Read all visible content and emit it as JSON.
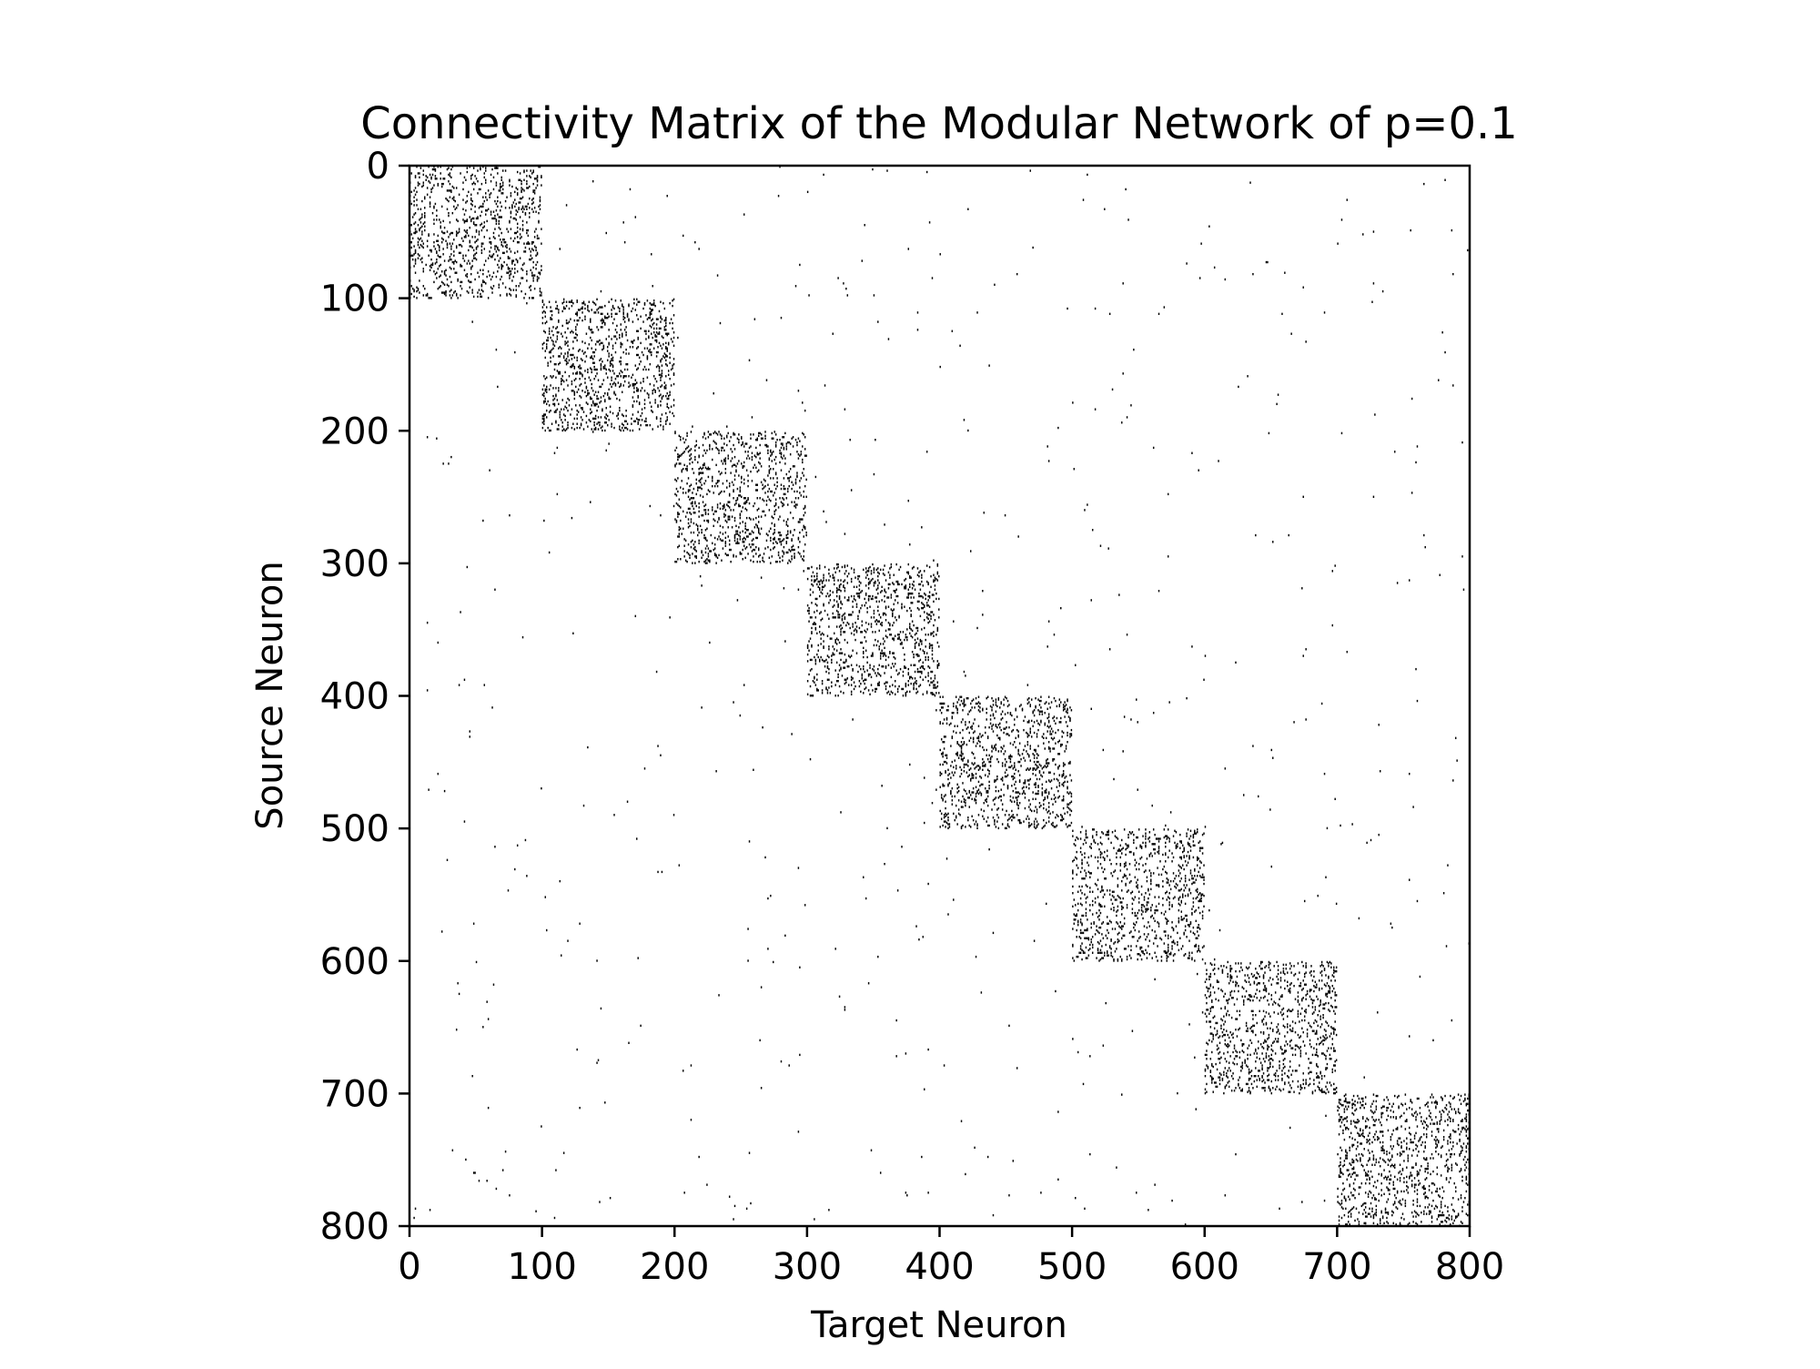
{
  "chart_data": {
    "type": "heatmap",
    "title": "Connectivity Matrix of the Modular Network of p=0.1",
    "xlabel": "Target Neuron",
    "ylabel": "Source Neuron",
    "xlim": [
      0,
      800
    ],
    "ylim": [
      800,
      0
    ],
    "x_ticks": [
      0,
      100,
      200,
      300,
      400,
      500,
      600,
      700,
      800
    ],
    "y_ticks": [
      0,
      100,
      200,
      300,
      400,
      500,
      600,
      700,
      800
    ],
    "x_tick_labels": [
      "0",
      "100",
      "200",
      "300",
      "400",
      "500",
      "600",
      "700",
      "800"
    ],
    "y_tick_labels": [
      "0",
      "100",
      "200",
      "300",
      "400",
      "500",
      "600",
      "700",
      "800"
    ],
    "grid": false,
    "colormap": "binary",
    "matrix_size": 800,
    "module_size": 100,
    "module_count": 8,
    "intra_module_connection_probability": 0.1,
    "inter_module_connection_probability": 0.001,
    "cell_color": "#000000",
    "background_color": "#ffffff",
    "axis_color": "#000000"
  }
}
